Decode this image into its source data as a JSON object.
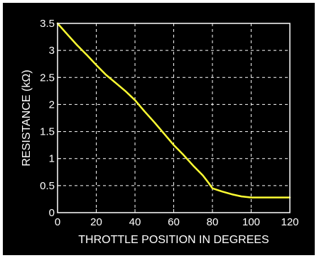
{
  "chart_data": {
    "type": "line",
    "title": "",
    "xlabel": "THROTTLE POSITION IN DEGREES",
    "ylabel": "RESISTANCE (kΩ)",
    "xlim": [
      0,
      120
    ],
    "ylim": [
      0,
      3.5
    ],
    "xticks": [
      0,
      20,
      40,
      60,
      80,
      100,
      120
    ],
    "yticks": [
      0,
      0.5,
      1,
      1.5,
      2,
      2.5,
      3,
      3.5
    ],
    "xtick_labels": [
      "0",
      "20",
      "40",
      "60",
      "80",
      "100",
      "120"
    ],
    "ytick_labels": [
      "0",
      "0.5",
      "1",
      "1.5",
      "2",
      "2.5",
      "3",
      "3.5"
    ],
    "grid": true,
    "colors": {
      "background": "#000000",
      "axes": "#ffffff",
      "grid": "#ffffff",
      "series": "#ffff33"
    },
    "series": [
      {
        "x": [
          0,
          5,
          10,
          15,
          20,
          25,
          30,
          35,
          40,
          45,
          50,
          55,
          60,
          65,
          70,
          75,
          78,
          80,
          85,
          90,
          95,
          100,
          105,
          110,
          115,
          120
        ],
        "values": [
          3.5,
          3.3,
          3.1,
          2.92,
          2.73,
          2.55,
          2.4,
          2.25,
          2.08,
          1.87,
          1.67,
          1.46,
          1.25,
          1.07,
          0.87,
          0.69,
          0.55,
          0.45,
          0.39,
          0.34,
          0.3,
          0.28,
          0.28,
          0.28,
          0.28,
          0.28
        ]
      }
    ]
  }
}
